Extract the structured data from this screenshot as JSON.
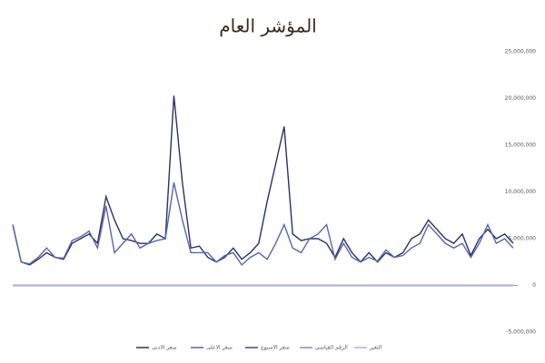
{
  "chart_data": {
    "type": "line",
    "title": "المؤشر العام",
    "categories": [
      null,
      null,
      null,
      null,
      null,
      null,
      null,
      null,
      null,
      null,
      null,
      null,
      null,
      null,
      null,
      null,
      null,
      null,
      null,
      null,
      null,
      null,
      null,
      null,
      null,
      null,
      null,
      null,
      null,
      null,
      null,
      null,
      null,
      null,
      null,
      null,
      null,
      null,
      null,
      null,
      null,
      null,
      null,
      null,
      null,
      null,
      null,
      null,
      null,
      null,
      null,
      null,
      null,
      null,
      null,
      null,
      null,
      null,
      null,
      null
    ],
    "series": [
      {
        "name": "سعر الادنى",
        "color": "#2b2f6e",
        "values": [
          6500000,
          2500000,
          2200000,
          2800000,
          3500000,
          3000000,
          2800000,
          4500000,
          5000000,
          5500000,
          4500000,
          9500000,
          7000000,
          5000000,
          4800000,
          4500000,
          4500000,
          5500000,
          5000000,
          20300000,
          11000000,
          4000000,
          4200000,
          3000000,
          2500000,
          3000000,
          4000000,
          2800000,
          3500000,
          4500000,
          9000000,
          13000000,
          17000000,
          5500000,
          4800000,
          5000000,
          5000000,
          4500000,
          3000000,
          5000000,
          3500000,
          2500000,
          3500000,
          2500000,
          3500000,
          3000000,
          3500000,
          5000000,
          5500000,
          7000000,
          6000000,
          5000000,
          4500000,
          5500000,
          3200000,
          5000000,
          6000000,
          5000000,
          5500000,
          4500000
        ]
      },
      {
        "name": "سعر الاعلى",
        "color": "#5566b0",
        "values": [
          6500000,
          2500000,
          2300000,
          3000000,
          4000000,
          3000000,
          2900000,
          4800000,
          5200000,
          5800000,
          4000000,
          8500000,
          3500000,
          4500000,
          5500000,
          4000000,
          4500000,
          4800000,
          5000000,
          11000000,
          7000000,
          3500000,
          3500000,
          3500000,
          2500000,
          3200000,
          3500000,
          2200000,
          3000000,
          3500000,
          2800000,
          4500000,
          6500000,
          4000000,
          3500000,
          5000000,
          5500000,
          6500000,
          2800000,
          4500000,
          3000000,
          2500000,
          3000000,
          2600000,
          3800000,
          3000000,
          3200000,
          4000000,
          4500000,
          6500000,
          5500000,
          4500000,
          4000000,
          4500000,
          3000000,
          4500000,
          6500000,
          4500000,
          5000000,
          4000000
        ]
      },
      {
        "name": "سعر الاسبوع",
        "color": "#3a4a8c",
        "values": [
          0,
          0,
          0,
          0,
          0,
          0,
          0,
          0,
          0,
          0,
          0,
          0,
          0,
          0,
          0,
          0,
          0,
          0,
          0,
          0,
          0,
          0,
          0,
          0,
          0,
          0,
          0,
          0,
          0,
          0,
          0,
          0,
          0,
          0,
          0,
          0,
          0,
          0,
          0,
          0,
          0,
          0,
          0,
          0,
          0,
          0,
          0,
          0,
          0,
          0,
          0,
          0,
          0,
          0,
          0,
          0,
          0,
          0,
          0,
          0
        ]
      },
      {
        "name": "الرقم القياسي",
        "color": "#7b8cd0",
        "values": [
          0,
          0,
          0,
          0,
          0,
          0,
          0,
          0,
          0,
          0,
          0,
          0,
          0,
          0,
          0,
          0,
          0,
          0,
          0,
          0,
          0,
          0,
          0,
          0,
          0,
          0,
          0,
          0,
          0,
          0,
          0,
          0,
          0,
          0,
          0,
          0,
          0,
          0,
          0,
          0,
          0,
          0,
          0,
          0,
          0,
          0,
          0,
          0,
          0,
          0,
          0,
          0,
          0,
          0,
          0,
          0,
          0,
          0,
          0,
          0
        ]
      },
      {
        "name": "التغير",
        "color": "#a9b3e0",
        "values": [
          0,
          0,
          0,
          0,
          0,
          0,
          0,
          0,
          0,
          0,
          0,
          0,
          0,
          0,
          0,
          0,
          0,
          0,
          0,
          0,
          0,
          0,
          0,
          0,
          0,
          0,
          0,
          0,
          0,
          0,
          0,
          0,
          0,
          0,
          0,
          0,
          0,
          0,
          0,
          0,
          0,
          0,
          0,
          0,
          0,
          0,
          0,
          0,
          0,
          0,
          0,
          0,
          0,
          0,
          0,
          0,
          0,
          0,
          0,
          0
        ]
      }
    ],
    "ylim": [
      -5000000,
      25000000
    ],
    "yticks": [
      {
        "value": -5000000,
        "label": "-5,000,000"
      },
      0,
      {
        "value": 5000000,
        "label": "5,000,000"
      },
      {
        "value": 10000000,
        "label": "10,000,000"
      },
      {
        "value": 15000000,
        "label": "15,000,000"
      },
      {
        "value": 20000000,
        "label": "20,000,000"
      },
      {
        "value": 25000000,
        "label": "25,000,000"
      }
    ]
  }
}
